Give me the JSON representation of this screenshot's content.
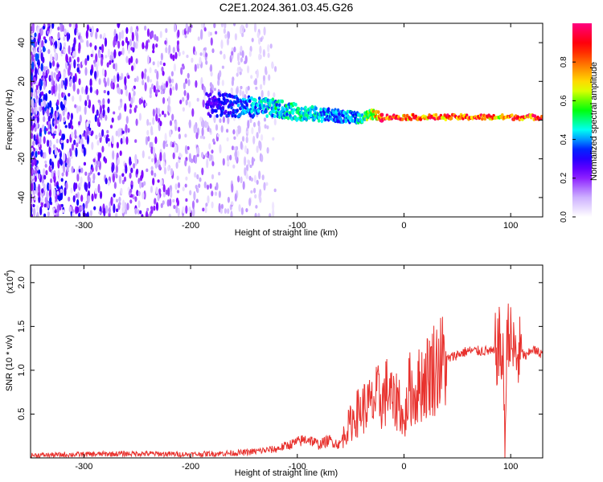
{
  "title": "C2E1.2024.361.03.45.G26",
  "chart_data": [
    {
      "type": "heatmap",
      "name": "spectrogram",
      "xlabel": "Height of straight line (km)",
      "ylabel": "Frequency (Hz)",
      "xlim": [
        -350,
        130
      ],
      "ylim": [
        -50,
        50
      ],
      "xticks": [
        -300,
        -200,
        -100,
        0,
        100
      ],
      "xtick_labels": [
        "-300",
        "-200",
        "-100",
        "0",
        "100"
      ],
      "yticks": [
        -40,
        -20,
        0,
        20,
        40
      ],
      "ytick_labels": [
        "-40",
        "-20",
        "0",
        "20",
        "40"
      ],
      "colorbar": {
        "label": "Normalized spectral amplitude",
        "range": [
          0,
          1
        ],
        "ticks": [
          0.0,
          0.2,
          0.4,
          0.6,
          0.8
        ],
        "tick_labels": [
          "0.0",
          "0.2",
          "0.4",
          "0.6",
          "0.8"
        ],
        "colormap": [
          "#ffffff",
          "#c8a8ff",
          "#7f00ff",
          "#0000ff",
          "#00ffff",
          "#00ff00",
          "#ffff00",
          "#ff8000",
          "#ff0000",
          "#ff0080"
        ]
      },
      "ridge": {
        "x": [
          -180,
          -150,
          -120,
          -100,
          -80,
          -60,
          -40,
          -30,
          -20,
          -10,
          0,
          20,
          50,
          80,
          90,
          100,
          130
        ],
        "freq_center": [
          8,
          7,
          6,
          4,
          3,
          2,
          1,
          3,
          1.5,
          1.5,
          1.5,
          1.5,
          1.5,
          1.5,
          1.5,
          1.5,
          1.5
        ],
        "amplitude": [
          0.3,
          0.4,
          0.5,
          0.5,
          0.45,
          0.4,
          0.5,
          0.7,
          0.95,
          0.95,
          0.9,
          0.9,
          0.9,
          0.9,
          0.8,
          0.9,
          0.9
        ]
      }
    },
    {
      "type": "line",
      "name": "snr",
      "xlabel": "Height of straight line (km)",
      "ylabel": "SNR (10 * v/v)",
      "y_multiplier": "(x10",
      "y_multiplier_exp": "4",
      "y_multiplier_close": ")",
      "xlim": [
        -350,
        130
      ],
      "ylim": [
        0,
        2.2
      ],
      "xticks": [
        -300,
        -200,
        -100,
        0,
        100
      ],
      "xtick_labels": [
        "-300",
        "-200",
        "-100",
        "0",
        "100"
      ],
      "yticks": [
        0.5,
        1.0,
        1.5,
        2.0
      ],
      "ytick_labels": [
        "0.5",
        "1.0",
        "1.5",
        "2.0"
      ],
      "color": "#e8322e",
      "x": [
        -350,
        -300,
        -250,
        -200,
        -150,
        -120,
        -100,
        -90,
        -80,
        -70,
        -60,
        -55,
        -50,
        -45,
        -40,
        -35,
        -30,
        -25,
        -20,
        -15,
        -10,
        -5,
        0,
        5,
        10,
        15,
        20,
        25,
        30,
        40,
        50,
        60,
        70,
        80,
        85,
        90,
        93,
        95,
        97,
        100,
        105,
        110,
        115,
        120,
        125,
        130
      ],
      "y": [
        0.03,
        0.04,
        0.05,
        0.04,
        0.06,
        0.1,
        0.18,
        0.22,
        0.15,
        0.2,
        0.15,
        0.3,
        0.4,
        0.5,
        0.55,
        0.6,
        0.6,
        0.7,
        0.65,
        0.8,
        0.6,
        0.7,
        0.35,
        0.8,
        0.7,
        0.85,
        0.9,
        1.0,
        1.05,
        1.12,
        1.18,
        1.22,
        1.22,
        1.22,
        1.2,
        1.3,
        1.0,
        0.25,
        1.6,
        1.3,
        1.15,
        1.2,
        1.15,
        1.25,
        1.2,
        1.2
      ]
    }
  ]
}
